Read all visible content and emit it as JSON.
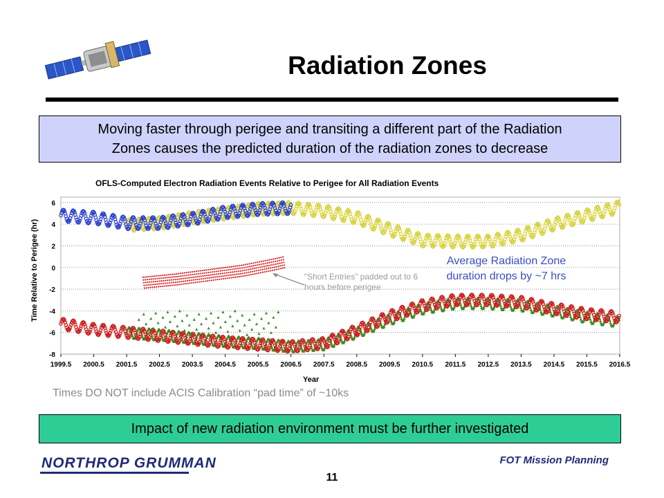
{
  "header": {
    "title": "Radiation Zones"
  },
  "callout_top": {
    "line1": "Moving faster through perigee and transiting a different part of the Radiation",
    "line2": "Zones causes the predicted duration of the radiation zones to decrease"
  },
  "annotations": {
    "average_line1": "Average Radiation Zone",
    "average_line2": "duration drops by ~7 hrs",
    "short_entries": "“Short Entries” padded out to 6 hours before perigee",
    "pad_time_note": "Times DO NOT include ACIS Calibration “pad time” of ~10ks"
  },
  "callout_bottom": {
    "text": "Impact of new radiation environment must be further investigated"
  },
  "footer": {
    "logo": "NORTHROP GRUMMAN",
    "section": "FOT Mission Planning",
    "page": "11"
  },
  "colors": {
    "entry_blue": "#2a3fd0",
    "entry_yellow": "#d8d23a",
    "exit_red": "#cc1f1f",
    "exit_green": "#3d8a1e",
    "short_entries_red": "#d21e1e",
    "top_callout_bg": "#cfd3fb",
    "bottom_callout_bg": "#2fcd96"
  },
  "chart_data": {
    "type": "scatter",
    "title": "OFLS-Computed Electron Radiation Events Relative to Perigee for All Radiation Events",
    "xlabel": "Year",
    "ylabel": "Time Relative to Perigee (hr)",
    "xlim": [
      1999.5,
      2016.5
    ],
    "ylim": [
      -8,
      6.5
    ],
    "x_ticks": [
      "1999.5",
      "2000.5",
      "2001.5",
      "2002.5",
      "2003.5",
      "2004.5",
      "2005.5",
      "2006.5",
      "2007.5",
      "2008.5",
      "2009.5",
      "2010.5",
      "2011.5",
      "2012.5",
      "2013.5",
      "2014.5",
      "2015.5",
      "2016.5"
    ],
    "y_ticks": [
      "6",
      "4",
      "2",
      "0",
      "-2",
      "-4",
      "-6",
      "-8"
    ],
    "grid": "horizontal dotted",
    "legend": "none",
    "series": [
      {
        "x": [
          1999.5,
          2000.5,
          2001.5,
          2002.5,
          2003.5,
          2004.5,
          2005.5,
          2006.5
        ],
        "y": [
          4.8,
          4.6,
          4.1,
          4.1,
          4.5,
          5.1,
          5.4,
          5.5
        ]
      },
      {
        "x": [
          2001.5,
          2002.5,
          2003.5,
          2004.5,
          2005.5,
          2006.5,
          2007.5,
          2008.5,
          2009.5,
          2010.5,
          2011.5,
          2012.5,
          2013.5,
          2014.5,
          2015.5,
          2016.5
        ],
        "y": [
          3.9,
          4.1,
          4.6,
          5.0,
          5.4,
          5.5,
          5.2,
          4.6,
          3.5,
          2.5,
          2.4,
          2.4,
          3.0,
          4.0,
          4.8,
          5.6
        ]
      },
      {
        "x": [
          1999.5,
          2000.5,
          2001.5,
          2002.5,
          2003.5,
          2004.5,
          2005.5,
          2006.5,
          2007.5,
          2008.5,
          2009.5,
          2010.5,
          2011.5,
          2012.5,
          2013.5,
          2014.5,
          2015.5,
          2016.5
        ],
        "y": [
          -5.2,
          -5.7,
          -6.0,
          -6.3,
          -6.6,
          -6.9,
          -7.1,
          -7.3,
          -7.0,
          -5.8,
          -4.5,
          -3.5,
          -3.0,
          -3.0,
          -3.2,
          -3.8,
          -4.3,
          -4.6
        ]
      },
      {
        "x": [
          2001.5,
          2002.5,
          2003.5,
          2004.5,
          2005.5,
          2006.5,
          2007.5,
          2008.5,
          2009.5,
          2010.5,
          2011.5,
          2012.5,
          2013.5,
          2014.5,
          2015.5,
          2016.5
        ],
        "y": [
          -6.0,
          -6.2,
          -6.5,
          -6.8,
          -7.0,
          -7.3,
          -7.1,
          -6.0,
          -4.8,
          -3.8,
          -3.3,
          -3.3,
          -3.5,
          -4.0,
          -4.6,
          -5.0
        ]
      },
      {
        "x": [
          2002.0,
          2003.0,
          2004.0,
          2005.0,
          2005.5,
          2006.0,
          2006.3
        ],
        "y": [
          -0.9,
          -0.6,
          -0.2,
          0.2,
          0.5,
          0.8,
          1.0
        ]
      }
    ]
  }
}
